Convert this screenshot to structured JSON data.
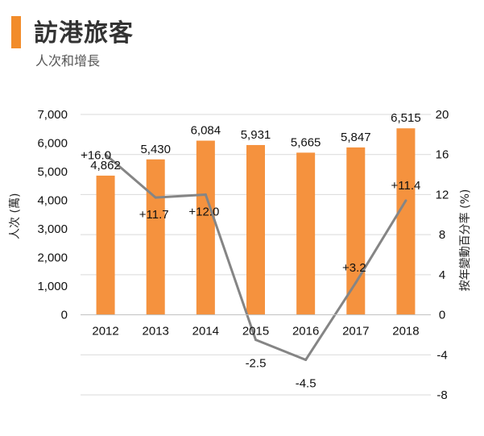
{
  "header": {
    "title": "訪港旅客",
    "subtitle": "人次和增長"
  },
  "colors": {
    "accent": "#F28C2A",
    "bar": "#F5923E",
    "line": "#858585",
    "grid": "#D9D9D9"
  },
  "chart_data": {
    "type": "bar",
    "title": "訪港旅客",
    "subtitle": "人次和增長",
    "categories": [
      "2012",
      "2013",
      "2014",
      "2015",
      "2016",
      "2017",
      "2018"
    ],
    "series": [
      {
        "type": "bar",
        "axis": "left",
        "values": [
          4862,
          5430,
          6084,
          5931,
          5665,
          5847,
          6515
        ],
        "labels": [
          "4,862",
          "5,430",
          "6,084",
          "5,931",
          "5,665",
          "5,847",
          "6,515"
        ]
      },
      {
        "type": "line",
        "axis": "right",
        "values": [
          16.0,
          11.7,
          12.0,
          -2.5,
          -4.5,
          3.2,
          11.4
        ],
        "labels": [
          "+16.0",
          "+11.7",
          "+12.0",
          "-2.5",
          "-4.5",
          "+3.2",
          "+11.4"
        ]
      }
    ],
    "ylabel": "人次 (萬)",
    "y2label": "按年變動百分率 (%)",
    "ylim": [
      0,
      7000
    ],
    "yticks": [
      "7,000",
      "6,000",
      "5,000",
      "4,000",
      "3,000",
      "2,000",
      "1,000",
      "0"
    ],
    "ytick_values": [
      7000,
      6000,
      5000,
      4000,
      3000,
      2000,
      1000,
      0
    ],
    "y2lim": [
      -8,
      20
    ],
    "y2ticks": [
      "20",
      "16",
      "12",
      "8",
      "4",
      "0",
      "-4",
      "-8"
    ],
    "y2tick_values": [
      20,
      16,
      12,
      8,
      4,
      0,
      -4,
      -8
    ],
    "grid": true
  }
}
